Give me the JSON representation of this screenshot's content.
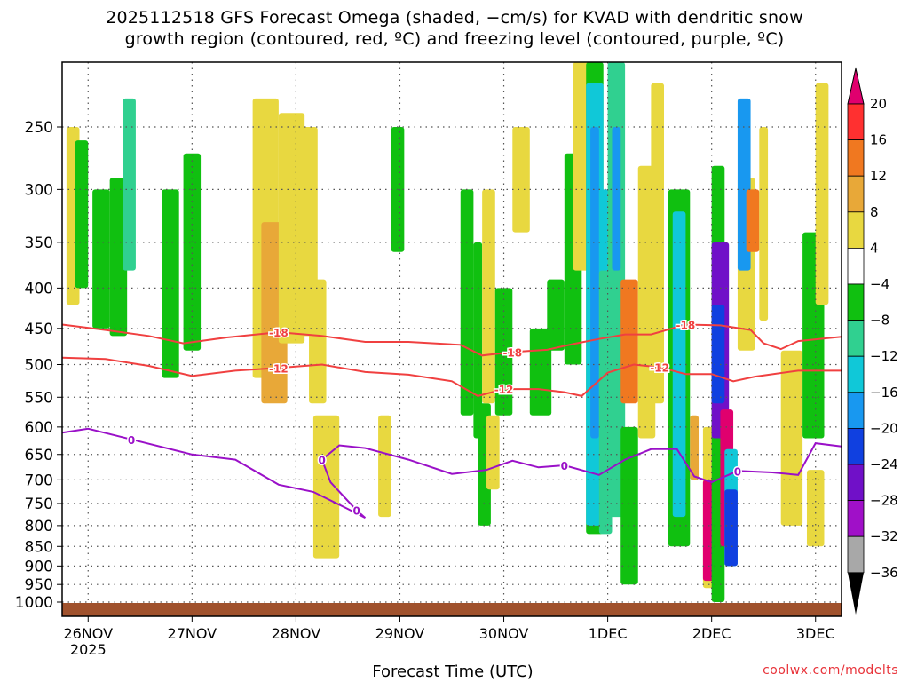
{
  "title_line1": "2025112518 GFS Forecast Omega (shaded, −cm/s) for KVAD with dendritic snow",
  "title_line2": "growth region (contoured, red, ºC) and freezing level (contoured, purple, ºC)",
  "credit": "coolwx.com/modelts",
  "colors": {
    "dgz_contour": "#f04040",
    "freezing_contour": "#9a10c8",
    "ground": "#a0522d"
  },
  "chart_data": {
    "type": "heatmap",
    "title": "2025112518 GFS Forecast Omega (shaded, −cm/s) for KVAD with dendritic snow growth region (contoured, red, ºC) and freezing level (contoured, purple, ºC)",
    "xlabel": "Forecast Time (UTC)",
    "ylabel": "",
    "x_ticks": [
      {
        "label": "26NOV",
        "sublabel": "2025",
        "hours": 6
      },
      {
        "label": "27NOV",
        "sublabel": "",
        "hours": 30
      },
      {
        "label": "28NOV",
        "sublabel": "",
        "hours": 54
      },
      {
        "label": "29NOV",
        "sublabel": "",
        "hours": 78
      },
      {
        "label": "30NOV",
        "sublabel": "",
        "hours": 102
      },
      {
        "label": "1DEC",
        "sublabel": "",
        "hours": 126
      },
      {
        "label": "2DEC",
        "sublabel": "",
        "hours": 150
      },
      {
        "label": "3DEC",
        "sublabel": "",
        "hours": 174
      }
    ],
    "xlim_hours": [
      0,
      180
    ],
    "y_ticks": [
      250,
      300,
      350,
      400,
      450,
      500,
      550,
      600,
      650,
      700,
      750,
      800,
      850,
      900,
      950,
      1000
    ],
    "ylim_hpa": [
      1025,
      200
    ],
    "yscale": "log",
    "grid": true,
    "colorbar": {
      "labels": [
        "20",
        "16",
        "12",
        "8",
        "4",
        "−4",
        "−8",
        "−12",
        "−16",
        "−20",
        "−24",
        "−28",
        "−32",
        "−36"
      ],
      "colors": [
        "#e0006e",
        "#ff3030",
        "#f07820",
        "#e8a838",
        "#e8d840",
        "#ffffff",
        "#10c010",
        "#30d090",
        "#10c8d8",
        "#1898f0",
        "#1040e0",
        "#7010c8",
        "#a010c8",
        "#a8a8a8"
      ]
    },
    "contours": [
      {
        "label": "-18",
        "color": "red",
        "points": [
          [
            0,
            445
          ],
          [
            10,
            452
          ],
          [
            20,
            460
          ],
          [
            28,
            470
          ],
          [
            38,
            462
          ],
          [
            50,
            455
          ],
          [
            60,
            460
          ],
          [
            70,
            468
          ],
          [
            80,
            468
          ],
          [
            92,
            472
          ],
          [
            97,
            487
          ],
          [
            104,
            482
          ],
          [
            112,
            479
          ],
          [
            118,
            471
          ],
          [
            124,
            464
          ],
          [
            130,
            458
          ],
          [
            136,
            458
          ],
          [
            144,
            445
          ],
          [
            152,
            446
          ],
          [
            159,
            452
          ],
          [
            162,
            470
          ],
          [
            166,
            478
          ],
          [
            170,
            467
          ],
          [
            180,
            461
          ]
        ]
      },
      {
        "label": "-12",
        "color": "red",
        "points": [
          [
            0,
            490
          ],
          [
            10,
            492
          ],
          [
            20,
            502
          ],
          [
            30,
            517
          ],
          [
            40,
            509
          ],
          [
            50,
            505
          ],
          [
            60,
            500
          ],
          [
            70,
            511
          ],
          [
            80,
            515
          ],
          [
            90,
            525
          ],
          [
            96,
            548
          ],
          [
            102,
            537
          ],
          [
            110,
            537
          ],
          [
            116,
            542
          ],
          [
            120,
            548
          ],
          [
            126,
            512
          ],
          [
            132,
            500
          ],
          [
            138,
            504
          ],
          [
            144,
            514
          ],
          [
            150,
            514
          ],
          [
            155,
            525
          ],
          [
            160,
            518
          ],
          [
            170,
            509
          ],
          [
            180,
            509
          ]
        ]
      },
      {
        "label": "0",
        "color": "purple",
        "points": [
          [
            0,
            610
          ],
          [
            6,
            603
          ],
          [
            16,
            622
          ],
          [
            30,
            650
          ],
          [
            40,
            660
          ],
          [
            50,
            710
          ],
          [
            58,
            725
          ],
          [
            66,
            762
          ],
          [
            70,
            782
          ],
          [
            68,
            765
          ],
          [
            62,
            705
          ],
          [
            60,
            660
          ],
          [
            64,
            633
          ],
          [
            70,
            638
          ],
          [
            80,
            660
          ],
          [
            90,
            688
          ],
          [
            98,
            680
          ],
          [
            104,
            662
          ],
          [
            110,
            675
          ],
          [
            116,
            671
          ],
          [
            124,
            690
          ],
          [
            130,
            660
          ],
          [
            136,
            640
          ],
          [
            142,
            640
          ],
          [
            146,
            693
          ],
          [
            150,
            705
          ],
          [
            156,
            682
          ],
          [
            164,
            685
          ],
          [
            170,
            690
          ],
          [
            174,
            629
          ],
          [
            180,
            635
          ]
        ]
      }
    ],
    "omega_cells": [
      [
        1,
        4,
        250,
        420,
        4
      ],
      [
        3,
        6,
        260,
        400,
        -8
      ],
      [
        7,
        11,
        300,
        450,
        -8
      ],
      [
        11,
        15,
        290,
        460,
        -8
      ],
      [
        14,
        17,
        230,
        380,
        -12
      ],
      [
        23,
        27,
        300,
        520,
        -8
      ],
      [
        28,
        32,
        270,
        480,
        -8
      ],
      [
        44,
        50,
        230,
        520,
        4
      ],
      [
        46,
        52,
        330,
        560,
        8
      ],
      [
        50,
        56,
        240,
        470,
        4
      ],
      [
        55,
        59,
        250,
        460,
        4
      ],
      [
        57,
        61,
        390,
        560,
        4
      ],
      [
        58,
        64,
        580,
        880,
        4
      ],
      [
        73,
        76,
        580,
        780,
        4
      ],
      [
        76,
        79,
        250,
        360,
        -8
      ],
      [
        92,
        95,
        300,
        580,
        -8
      ],
      [
        95,
        97,
        350,
        620,
        -8
      ],
      [
        96,
        99,
        560,
        800,
        -8
      ],
      [
        97,
        100,
        300,
        560,
        4
      ],
      [
        98,
        101,
        580,
        720,
        4
      ],
      [
        100,
        104,
        400,
        580,
        -8
      ],
      [
        104,
        108,
        250,
        340,
        4
      ],
      [
        108,
        113,
        450,
        580,
        -8
      ],
      [
        112,
        116,
        390,
        480,
        -8
      ],
      [
        116,
        120,
        270,
        500,
        -8
      ],
      [
        118,
        122,
        200,
        380,
        4
      ],
      [
        121,
        125,
        200,
        820,
        -8
      ],
      [
        121,
        125,
        220,
        800,
        -16
      ],
      [
        122,
        124,
        250,
        620,
        -20
      ],
      [
        124,
        127,
        300,
        700,
        -16
      ],
      [
        124,
        127,
        380,
        820,
        -12
      ],
      [
        126,
        130,
        480,
        780,
        -12
      ],
      [
        126,
        130,
        200,
        620,
        -12
      ],
      [
        127,
        129,
        250,
        380,
        -20
      ],
      [
        129,
        133,
        390,
        560,
        12
      ],
      [
        129,
        133,
        600,
        950,
        -8
      ],
      [
        133,
        137,
        280,
        620,
        4
      ],
      [
        136,
        139,
        220,
        560,
        4
      ],
      [
        140,
        145,
        300,
        850,
        -8
      ],
      [
        141,
        144,
        320,
        780,
        -16
      ],
      [
        145,
        147,
        580,
        700,
        8
      ],
      [
        148,
        152,
        600,
        960,
        4
      ],
      [
        148,
        152,
        700,
        940,
        20
      ],
      [
        150,
        153,
        280,
        1000,
        -8
      ],
      [
        150,
        154,
        350,
        620,
        -28
      ],
      [
        150,
        153,
        420,
        560,
        -24
      ],
      [
        152,
        155,
        570,
        850,
        20
      ],
      [
        153,
        156,
        640,
        900,
        -16
      ],
      [
        153,
        156,
        720,
        900,
        -24
      ],
      [
        156,
        160,
        290,
        480,
        4
      ],
      [
        156,
        159,
        230,
        380,
        -20
      ],
      [
        158,
        161,
        300,
        360,
        12
      ],
      [
        161,
        163,
        250,
        440,
        4
      ],
      [
        166,
        171,
        480,
        800,
        4
      ],
      [
        171,
        176,
        340,
        620,
        -8
      ],
      [
        172,
        176,
        680,
        850,
        4
      ],
      [
        174,
        177,
        220,
        420,
        4
      ]
    ]
  }
}
